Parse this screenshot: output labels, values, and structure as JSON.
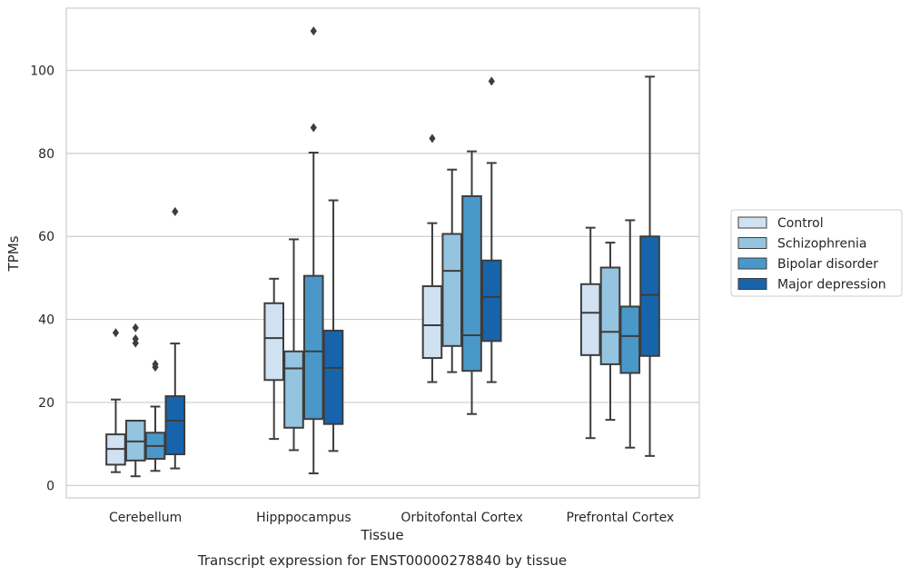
{
  "chart_data": {
    "type": "boxplot",
    "title": "Transcript expression for ENST00000278840 by tissue",
    "xlabel": "Tissue",
    "ylabel": "TPMs",
    "ylim": [
      -3,
      115
    ],
    "yticks": [
      0,
      20,
      40,
      60,
      80,
      100
    ],
    "grid": "horizontal",
    "legend_position": "right",
    "categories": [
      "Cerebellum",
      "Hipppocampus",
      "Orbitofontal Cortex",
      "Prefrontal Cortex"
    ],
    "series": [
      {
        "name": "Control",
        "color": "#d0e1f2",
        "boxes": [
          {
            "whislo": 3.2,
            "q1": 5.0,
            "med": 8.8,
            "q3": 12.3,
            "whishi": 20.7,
            "fliers": [
              36.8
            ]
          },
          {
            "whislo": 11.2,
            "q1": 25.4,
            "med": 35.5,
            "q3": 43.9,
            "whishi": 49.8,
            "fliers": []
          },
          {
            "whislo": 24.9,
            "q1": 30.7,
            "med": 38.6,
            "q3": 48.0,
            "whishi": 63.2,
            "fliers": [
              83.6
            ]
          },
          {
            "whislo": 11.4,
            "q1": 31.4,
            "med": 41.6,
            "q3": 48.5,
            "whishi": 62.1,
            "fliers": []
          }
        ]
      },
      {
        "name": "Schizophrenia",
        "color": "#94c4df",
        "boxes": [
          {
            "whislo": 2.2,
            "q1": 6.0,
            "med": 10.6,
            "q3": 15.6,
            "whishi": 15.6,
            "fliers": [
              34.3,
              35.3,
              38.0
            ]
          },
          {
            "whislo": 8.5,
            "q1": 13.9,
            "med": 28.2,
            "q3": 32.3,
            "whishi": 59.3,
            "fliers": []
          },
          {
            "whislo": 27.3,
            "q1": 33.6,
            "med": 51.7,
            "q3": 60.6,
            "whishi": 76.1,
            "fliers": []
          },
          {
            "whislo": 15.8,
            "q1": 29.2,
            "med": 37.0,
            "q3": 52.5,
            "whishi": 58.5,
            "fliers": []
          }
        ]
      },
      {
        "name": "Bipolar disorder",
        "color": "#4a98c9",
        "boxes": [
          {
            "whislo": 3.5,
            "q1": 6.4,
            "med": 9.5,
            "q3": 12.7,
            "whishi": 19.0,
            "fliers": [
              28.5,
              29.2
            ]
          },
          {
            "whislo": 2.9,
            "q1": 16.0,
            "med": 32.3,
            "q3": 50.5,
            "whishi": 80.2,
            "fliers": [
              86.2,
              109.5
            ]
          },
          {
            "whislo": 17.2,
            "q1": 27.6,
            "med": 36.2,
            "q3": 69.7,
            "whishi": 80.5,
            "fliers": []
          },
          {
            "whislo": 9.1,
            "q1": 27.1,
            "med": 36.0,
            "q3": 43.1,
            "whishi": 63.9,
            "fliers": []
          }
        ]
      },
      {
        "name": "Major depression",
        "color": "#1764ab",
        "boxes": [
          {
            "whislo": 4.1,
            "q1": 7.5,
            "med": 15.6,
            "q3": 21.5,
            "whishi": 34.2,
            "fliers": [
              66.0
            ]
          },
          {
            "whislo": 8.3,
            "q1": 14.8,
            "med": 28.3,
            "q3": 37.3,
            "whishi": 68.7,
            "fliers": []
          },
          {
            "whislo": 24.9,
            "q1": 34.8,
            "med": 45.4,
            "q3": 54.2,
            "whishi": 77.7,
            "fliers": [
              97.4
            ]
          },
          {
            "whislo": 7.1,
            "q1": 31.2,
            "med": 45.9,
            "q3": 60.0,
            "whishi": 98.5,
            "fliers": []
          }
        ]
      }
    ]
  }
}
